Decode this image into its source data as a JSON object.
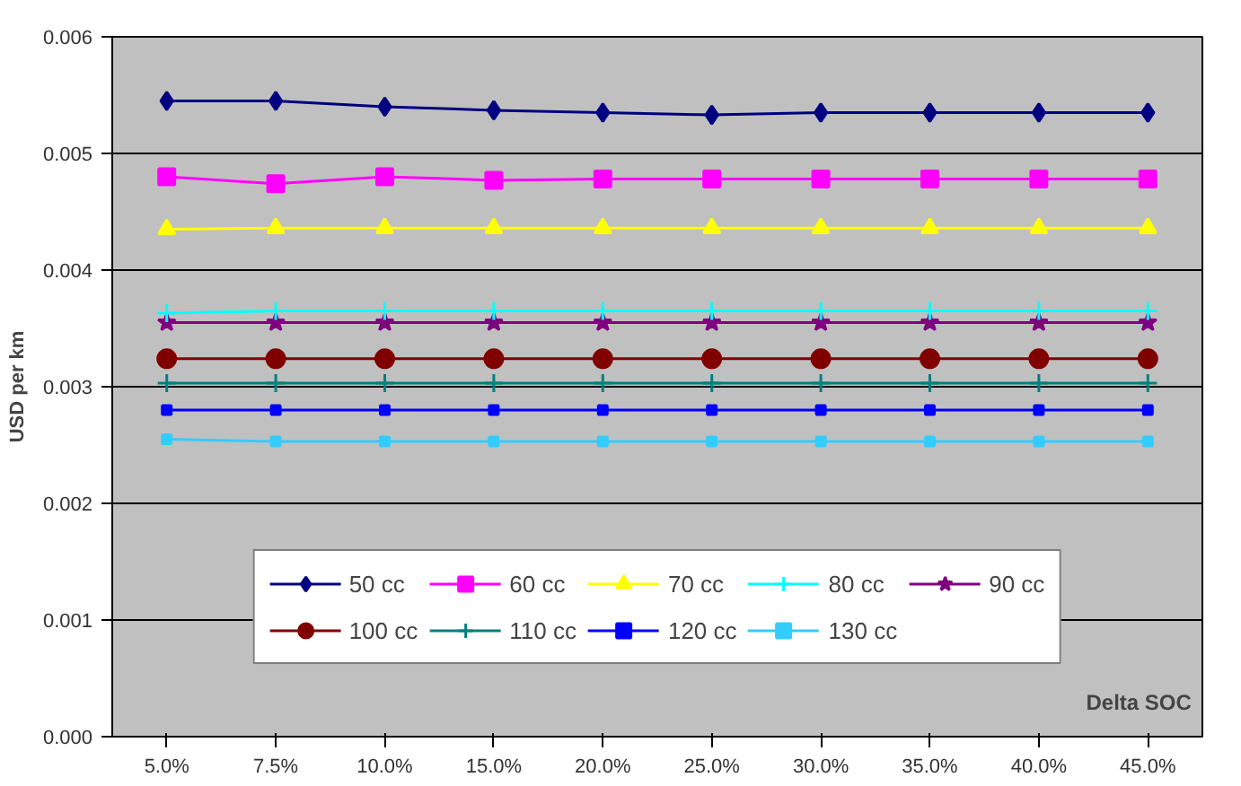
{
  "chart_data": {
    "type": "line",
    "xlabel": "Delta SOC",
    "ylabel": "USD per km",
    "categories": [
      "5.0%",
      "7.5%",
      "10.0%",
      "15.0%",
      "20.0%",
      "25.0%",
      "30.0%",
      "35.0%",
      "40.0%",
      "45.0%"
    ],
    "ylim": [
      0,
      0.006
    ],
    "yticks": [
      {
        "value": 0,
        "label": "0.000"
      },
      0.001,
      0.002,
      0.003,
      0.004,
      0.005,
      0.006
    ],
    "grid": "y",
    "legend": "bottom",
    "series": [
      {
        "name": "50 cc",
        "color": "#000080",
        "marker": "diamond",
        "values": [
          0.00545,
          0.00545,
          0.0054,
          0.00537,
          0.00535,
          0.00533,
          0.00535,
          0.00535,
          0.00535,
          0.00535
        ]
      },
      {
        "name": "60 cc",
        "color": "#ff00ff",
        "marker": "square",
        "values": [
          0.0048,
          0.00474,
          0.0048,
          0.00477,
          0.00478,
          0.00478,
          0.00478,
          0.00478,
          0.00478,
          0.00478
        ]
      },
      {
        "name": "70 cc",
        "color": "#ffff00",
        "marker": "triangle",
        "values": [
          0.00435,
          0.00436,
          0.00436,
          0.00436,
          0.00436,
          0.00436,
          0.00436,
          0.00436,
          0.00436,
          0.00436
        ]
      },
      {
        "name": "80 cc",
        "color": "#00ffff",
        "marker": "cross",
        "values": [
          0.00363,
          0.00365,
          0.00365,
          0.00365,
          0.00365,
          0.00365,
          0.00365,
          0.00365,
          0.00365,
          0.00365
        ]
      },
      {
        "name": "90 cc",
        "color": "#800080",
        "marker": "star",
        "values": [
          0.00355,
          0.00355,
          0.00355,
          0.00355,
          0.00355,
          0.00355,
          0.00355,
          0.00355,
          0.00355,
          0.00355
        ]
      },
      {
        "name": "100 cc",
        "color": "#800000",
        "marker": "circle",
        "values": [
          0.00324,
          0.00324,
          0.00324,
          0.00324,
          0.00324,
          0.00324,
          0.00324,
          0.00324,
          0.00324,
          0.00324
        ]
      },
      {
        "name": "110 cc",
        "color": "#008080",
        "marker": "cross",
        "values": [
          0.00303,
          0.00303,
          0.00303,
          0.00303,
          0.00303,
          0.00303,
          0.00303,
          0.00303,
          0.00303,
          0.00303
        ]
      },
      {
        "name": "120 cc",
        "color": "#0000ff",
        "marker": "square",
        "values": [
          0.0028,
          0.0028,
          0.0028,
          0.0028,
          0.0028,
          0.0028,
          0.0028,
          0.0028,
          0.0028,
          0.0028
        ]
      },
      {
        "name": "130 cc",
        "color": "#33ccff",
        "marker": "square",
        "values": [
          0.00255,
          0.00253,
          0.00253,
          0.00253,
          0.00253,
          0.00253,
          0.00253,
          0.00253,
          0.00253,
          0.00253
        ]
      }
    ]
  }
}
